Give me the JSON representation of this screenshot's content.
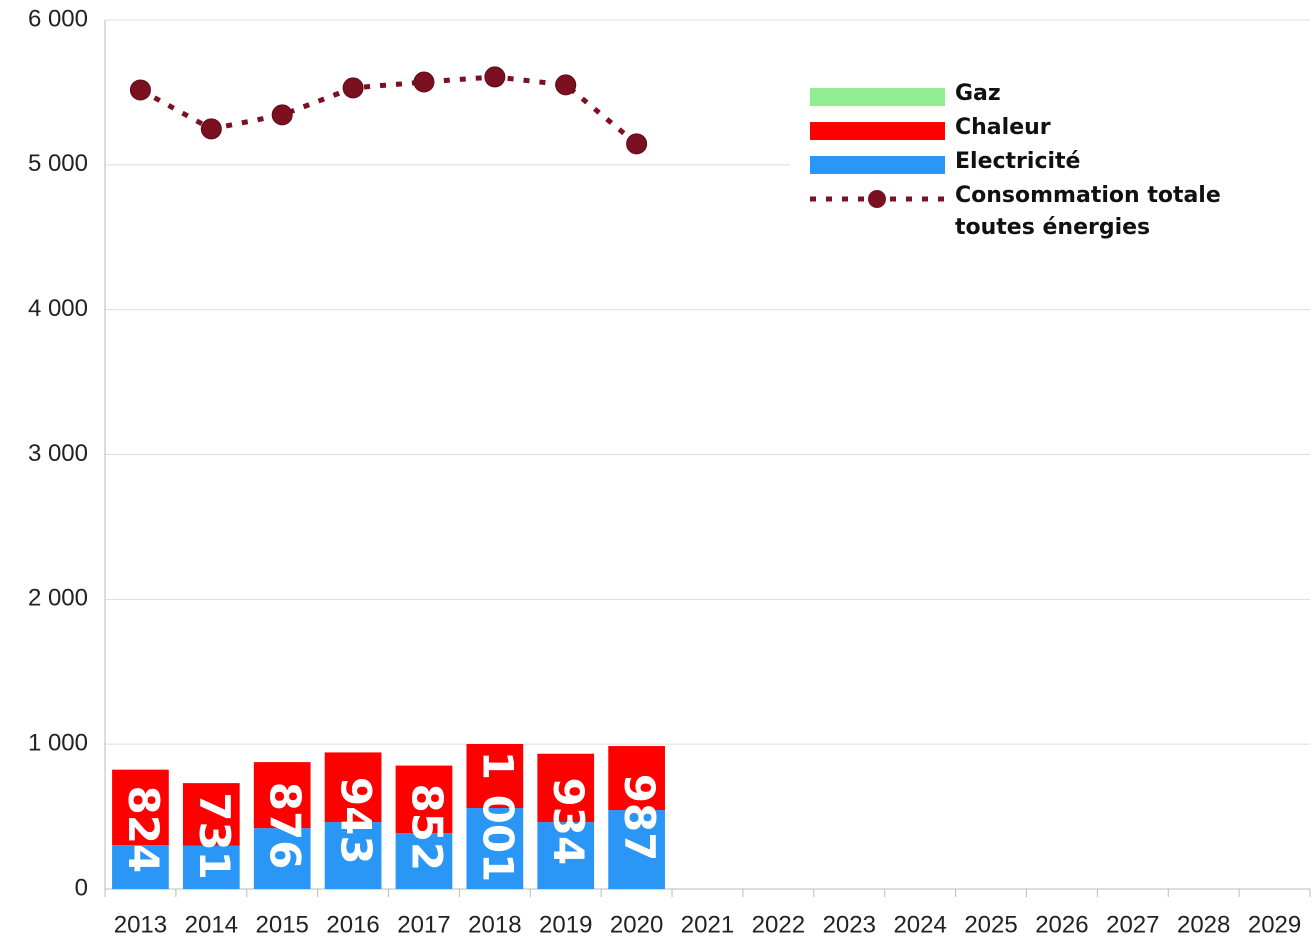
{
  "chart_data": {
    "type": "bar",
    "categories": [
      "2013",
      "2014",
      "2015",
      "2016",
      "2017",
      "2018",
      "2019",
      "2020",
      "2021",
      "2022",
      "2023",
      "2024",
      "2025",
      "2026",
      "2027",
      "2028",
      "2029"
    ],
    "series": [
      {
        "name": "Gaz",
        "type": "bar",
        "color": "#90ee90",
        "values": [
          0,
          0,
          0,
          0,
          0,
          0,
          0,
          0,
          null,
          null,
          null,
          null,
          null,
          null,
          null,
          null,
          null
        ]
      },
      {
        "name": "Chaleur",
        "type": "bar",
        "color": "#ff0000",
        "values": [
          521,
          431,
          456,
          481,
          466,
          442,
          472,
          442,
          null,
          null,
          null,
          null,
          null,
          null,
          null,
          null,
          null
        ]
      },
      {
        "name": "Electricité",
        "type": "bar",
        "color": "#2a96f5",
        "values": [
          303,
          300,
          420,
          462,
          386,
          559,
          462,
          545,
          null,
          null,
          null,
          null,
          null,
          null,
          null,
          null,
          null
        ]
      },
      {
        "name": "Consommation totale toutes énergies",
        "type": "line",
        "color": "#7b1020",
        "values": [
          5517,
          5248,
          5345,
          5531,
          5572,
          5607,
          5552,
          5145,
          null,
          null,
          null,
          null,
          null,
          null,
          null,
          null,
          null
        ]
      }
    ],
    "bar_totals": {
      "values": [
        824,
        731,
        876,
        943,
        852,
        1001,
        934,
        987
      ],
      "value_labels": [
        "824",
        "731",
        "876",
        "943",
        "852",
        "1 001",
        "934",
        "987"
      ]
    },
    "ylim": [
      0,
      6000
    ],
    "yticks": [
      0,
      {
        "value": 1000,
        "label": "1 000"
      },
      {
        "value": 2000,
        "label": "2 000"
      },
      {
        "value": 3000,
        "label": "3 000"
      },
      {
        "value": 4000,
        "label": "4 000"
      },
      {
        "value": 5000,
        "label": "5 000"
      },
      {
        "value": 6000,
        "label": "6 000"
      }
    ],
    "grid": true,
    "legend": "top-right"
  }
}
